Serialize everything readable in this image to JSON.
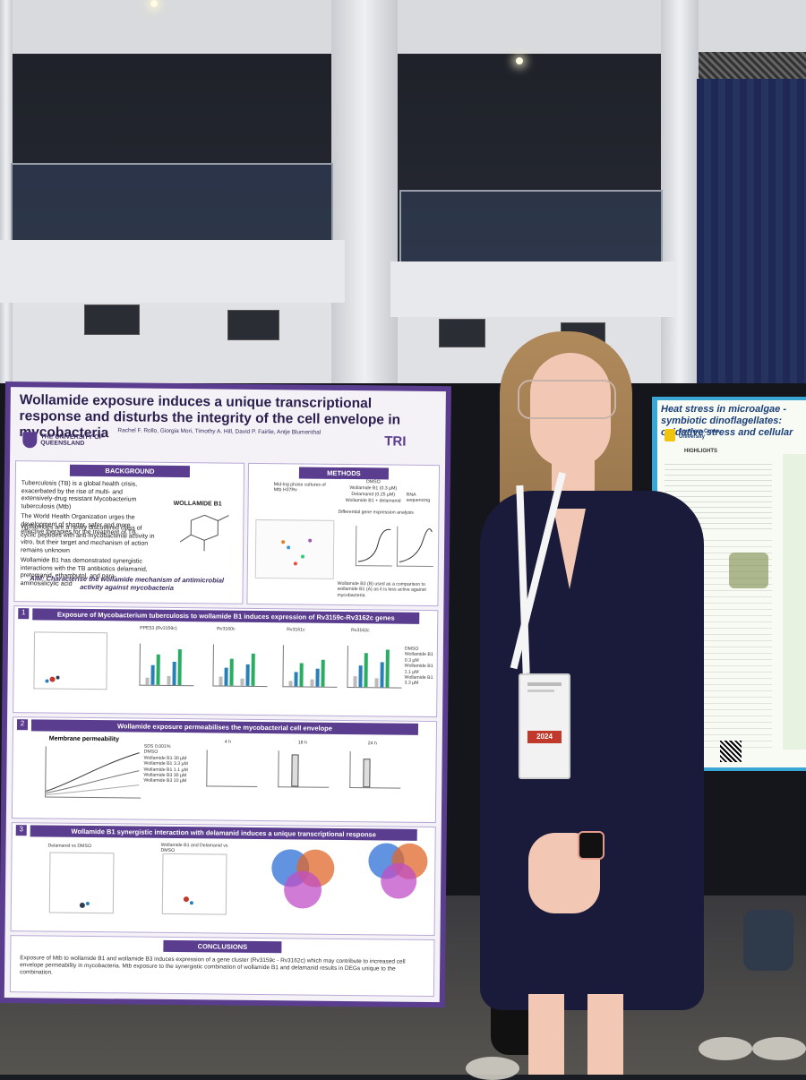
{
  "main_poster": {
    "title": "Wollamide exposure induces a unique transcriptional response and disturbs the integrity of the cell envelope in mycobacteria",
    "authors": "Rachel F. Rollo, Giorgia Mori, Timothy A. Hill, David P. Fairlie, Antje Blumenthal",
    "logo_left": "THE UNIVERSITY OF QUEENSLAND",
    "logo_right": "TRI",
    "sections": {
      "background": "BACKGROUND",
      "methods": "METHODS",
      "conclusions": "CONCLUSIONS"
    },
    "background_bullets": [
      "Tuberculosis (TB) is a global health crisis, exacerbated by the rise of multi- and extensively-drug resistant Mycobacterium tuberculosis (Mtb)",
      "The World Health Organization urges the development of shorter, safer and more effective therapies for the treatment of TB",
      "Wollamides are a newly discovered class of cyclic peptides with anti-mycobacterial activity in vitro, but their target and mechanism of action remains unknown",
      "Wollamide B1 has demonstrated synergistic interactions with the TB antibiotics delamanid, pretomanid, ethambutol, and para-aminosalicylic acid"
    ],
    "molecule_label": "WOLLAMIDE B1",
    "aim": "AIM: Characterise the wollamide mechanism of antimicrobial activity against mycobacteria",
    "methods_items": [
      "Mid-log phase cultures of Mtb H37Rv",
      "DMSO",
      "Wollamide B1 (0.3 µM)",
      "Delamanid (0.25 µM)",
      "Wollamide B1 + delamanid",
      "RNA sequencing",
      "Differential gene expression analysis"
    ],
    "methods_caption": "Wollamide B3 (B) used as a comparison to wollamide B1 (A) as it is less active against mycobacteria.",
    "section1_title": "Exposure of Mycobacterium tuberculosis to wollamide B1 induces expression of Rv3159c-Rv3162c genes",
    "section1_genes": [
      "PPE53 (Rv3159c)",
      "Rv3160c",
      "Rv3161c",
      "Rv3162c"
    ],
    "section1_legend": [
      "DMSO",
      "Wollamide B1 0.3 µM",
      "Wollamide B1 1.1 µM",
      "Wollamide B1 3.3 µM"
    ],
    "section2_title": "Wollamide exposure permeabilises the mycobacterial cell envelope",
    "section2_chart_title": "Membrane permeability",
    "section2_timepoints": [
      "4 h",
      "18 h",
      "24 h"
    ],
    "section2_legend": [
      "SDS 0.001%",
      "DMSO",
      "Wollamide B1 30 µM",
      "Wollamide B1 3.3 µM",
      "Wollamide B1 1.1 µM",
      "Wollamide B3 30 µM",
      "Wollamide B3 10 µM"
    ],
    "section3_title": "Wollamide B1 synergistic interaction with delamanid induces a unique transcriptional response",
    "section3_labels": [
      "Delamanid vs DMSO",
      "Wollamide B1 and Delamanid vs DMSO"
    ],
    "conclusion_text": "Exposure of Mtb to wollamide B1 and wollamide B3 induces expression of a gene cluster (Rv3159c - Rv3162c) which may contribute to increased cell envelope permeability in mycobacteria. Mtb exposure to the synergistic combination of wollamide B1 and delamanid results in DEGs unique to the combination."
  },
  "side_poster": {
    "title": "Heat stress in microalgae - symbiotic dinoflagellates: oxidative stress and cellular",
    "org": "Southern Cross University",
    "highlights_label": "HIGHLIGHTS"
  },
  "badge": {
    "year": "2024"
  },
  "colors": {
    "poster_purple": "#5b3d8f",
    "side_poster_blue": "#3aa6d6",
    "dress_navy": "#1a1a3a",
    "badge_red": "#c0392b"
  }
}
